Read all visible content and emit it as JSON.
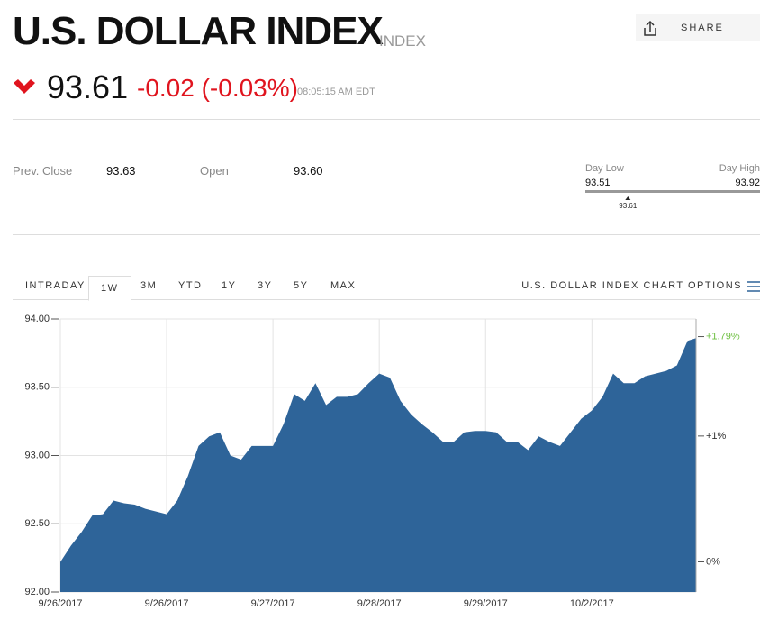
{
  "header": {
    "title": "U.S. DOLLAR INDEX",
    "kind": "INDEX",
    "share": "SHARE",
    "price": "93.61",
    "change": "-0.02 (-0.03%)",
    "time": "08:05:15 AM EDT"
  },
  "stats": {
    "prev_close_label": "Prev. Close",
    "prev_close": "93.63",
    "open_label": "Open",
    "open": "93.60"
  },
  "day_range": {
    "low_label": "Day Low",
    "high_label": "Day High",
    "low": 93.51,
    "high": 93.92,
    "current": 93.61
  },
  "tabs": [
    "INTRADAY",
    "1W",
    "3M",
    "YTD",
    "1Y",
    "3Y",
    "5Y",
    "MAX"
  ],
  "chart_options": "U.S. DOLLAR INDEX CHART OPTIONS",
  "chart_data": {
    "type": "area",
    "color": "#2e6499",
    "grid": true,
    "x": [
      0,
      0.1,
      0.2,
      0.3,
      0.4,
      0.5,
      0.6,
      0.7,
      0.8,
      0.9,
      1,
      1.1,
      1.2,
      1.3,
      1.4,
      1.5,
      1.6,
      1.7,
      1.8,
      1.9,
      2,
      2.1,
      2.2,
      2.3,
      2.4,
      2.5,
      2.6,
      2.7,
      2.8,
      2.9,
      3,
      3.1,
      3.2,
      3.3,
      3.4,
      3.5,
      3.6,
      3.7,
      3.8,
      3.9,
      4,
      4.1,
      4.2,
      4.3,
      4.4,
      4.5,
      4.6,
      4.7,
      4.8,
      4.9,
      5,
      5.1,
      5.2,
      5.3,
      5.4,
      5.5,
      5.6,
      5.7,
      5.8,
      5.9,
      5.98
    ],
    "values": [
      92.22,
      92.34,
      92.44,
      92.56,
      92.57,
      92.67,
      92.65,
      92.64,
      92.61,
      92.59,
      92.57,
      92.67,
      92.85,
      93.07,
      93.14,
      93.17,
      93.0,
      92.97,
      93.07,
      93.07,
      93.07,
      93.23,
      93.45,
      93.4,
      93.53,
      93.37,
      93.43,
      93.43,
      93.45,
      93.53,
      93.6,
      93.57,
      93.4,
      93.3,
      93.23,
      93.17,
      93.1,
      93.1,
      93.17,
      93.18,
      93.18,
      93.17,
      93.1,
      93.1,
      93.04,
      93.14,
      93.1,
      93.07,
      93.17,
      93.27,
      93.33,
      93.43,
      93.6,
      93.53,
      93.53,
      93.58,
      93.6,
      93.62,
      93.66,
      93.84,
      93.86
    ],
    "xlim": [
      0,
      5.98
    ],
    "xticks": [
      {
        "value": 0,
        "label": "9/26/2017"
      },
      {
        "value": 1,
        "label": "9/26/2017"
      },
      {
        "value": 2,
        "label": "9/27/2017"
      },
      {
        "value": 3,
        "label": "9/28/2017"
      },
      {
        "value": 4,
        "label": "9/29/2017"
      },
      {
        "value": 5,
        "label": "10/2/2017"
      }
    ],
    "ylim": [
      92,
      94
    ],
    "yticks": [
      {
        "value": 92,
        "label": "92.00"
      },
      {
        "value": 92.5,
        "label": "92.50"
      },
      {
        "value": 93,
        "label": "93.00"
      },
      {
        "value": 93.5,
        "label": "93.50"
      },
      {
        "value": 94,
        "label": "94.00"
      }
    ],
    "y2lim": [
      -0.24,
      1.93
    ],
    "y2ticks": [
      {
        "value": 0,
        "label": "0%"
      },
      {
        "value": 1,
        "label": "+1%"
      },
      {
        "value": 1.79,
        "label": "+1.79%"
      }
    ]
  }
}
